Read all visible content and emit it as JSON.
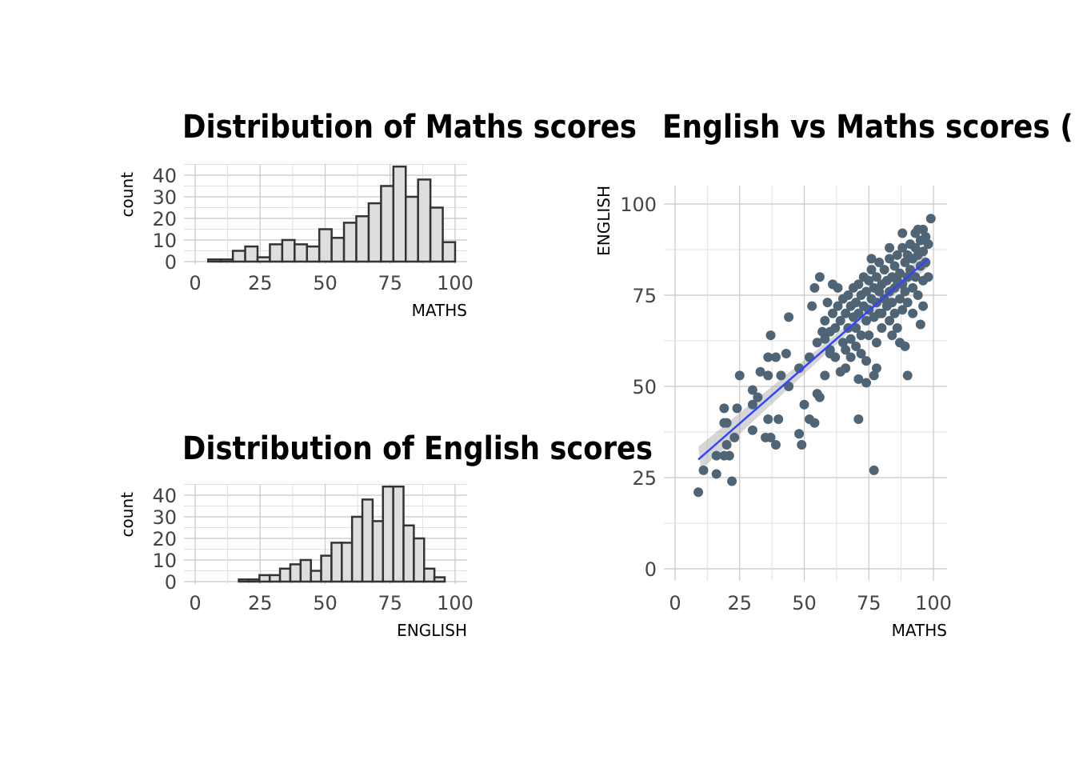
{
  "chart_data": [
    {
      "type": "bar",
      "title": "Distribution of Maths scores",
      "xlabel": "MATHS",
      "ylabel": "count",
      "xlim": [
        0,
        100
      ],
      "ylim": [
        0,
        45
      ],
      "xticks": [
        "0",
        "25",
        "50",
        "75",
        "100"
      ],
      "yticks": [
        "0",
        "10",
        "20",
        "30",
        "40"
      ],
      "bin_start": 5.0,
      "bin_width": 4.75,
      "counts": [
        1,
        1,
        5,
        7,
        2,
        8,
        10,
        8,
        7,
        15,
        11,
        18,
        21,
        27,
        35,
        44,
        30,
        38,
        25,
        9
      ],
      "fill": "#dedede",
      "stroke": "#333333"
    },
    {
      "type": "bar",
      "title": "Distribution of English scores",
      "xlabel": "ENGLISH",
      "ylabel": "count",
      "xlim": [
        0,
        100
      ],
      "ylim": [
        0,
        45
      ],
      "xticks": [
        "0",
        "25",
        "50",
        "75",
        "100"
      ],
      "yticks": [
        "0",
        "10",
        "20",
        "30",
        "40"
      ],
      "bin_start": 16.8,
      "bin_width": 3.96,
      "counts": [
        1,
        1,
        3,
        3,
        6,
        8,
        10,
        5,
        12,
        18,
        18,
        30,
        38,
        28,
        44,
        44,
        26,
        20,
        6,
        2
      ],
      "fill": "#dedede",
      "stroke": "#333333"
    },
    {
      "type": "scatter",
      "title": "English vs Maths scores (P",
      "xlabel": "MATHS",
      "ylabel": "ENGLISH",
      "xlim": [
        0,
        100
      ],
      "ylim": [
        0,
        100
      ],
      "xticks": [
        "0",
        "25",
        "50",
        "75",
        "100"
      ],
      "yticks": [
        "0",
        "25",
        "50",
        "75",
        "100"
      ],
      "point_color": "#4f6575",
      "line_color": "#3344ff",
      "fit": {
        "intercept": 24.4,
        "slope": 0.618,
        "x_range": [
          9,
          98
        ]
      },
      "points": [
        [
          9,
          21
        ],
        [
          11,
          27
        ],
        [
          16,
          26
        ],
        [
          22,
          24
        ],
        [
          16,
          31
        ],
        [
          19,
          31
        ],
        [
          21,
          31
        ],
        [
          20,
          34
        ],
        [
          23,
          36
        ],
        [
          19,
          40
        ],
        [
          20,
          40
        ],
        [
          19,
          44
        ],
        [
          24,
          44
        ],
        [
          25,
          53
        ],
        [
          30,
          38
        ],
        [
          30,
          45
        ],
        [
          30,
          49
        ],
        [
          32,
          47
        ],
        [
          33,
          54
        ],
        [
          36,
          53
        ],
        [
          36,
          41
        ],
        [
          37,
          36
        ],
        [
          35,
          36
        ],
        [
          40,
          41
        ],
        [
          39,
          34
        ],
        [
          36,
          58
        ],
        [
          37,
          64
        ],
        [
          39,
          58
        ],
        [
          43,
          59
        ],
        [
          44,
          69
        ],
        [
          41,
          53
        ],
        [
          44,
          50
        ],
        [
          48,
          37
        ],
        [
          49,
          34
        ],
        [
          50,
          45
        ],
        [
          52,
          41
        ],
        [
          54,
          40
        ],
        [
          54,
          77
        ],
        [
          56,
          80
        ],
        [
          53,
          72
        ],
        [
          61,
          78
        ],
        [
          71,
          41
        ],
        [
          77,
          27
        ],
        [
          90,
          53
        ],
        [
          99,
          96
        ],
        [
          56,
          47
        ],
        [
          55,
          48
        ],
        [
          58,
          53
        ],
        [
          64,
          54
        ],
        [
          66,
          55
        ],
        [
          74,
          51
        ],
        [
          77,
          53
        ],
        [
          78,
          55
        ],
        [
          71,
          52
        ],
        [
          87,
          62
        ],
        [
          89,
          61
        ],
        [
          95,
          67
        ],
        [
          96,
          72
        ],
        [
          48,
          55
        ],
        [
          52,
          58
        ],
        [
          55,
          62
        ],
        [
          58,
          63
        ],
        [
          60,
          59
        ],
        [
          60,
          65
        ],
        [
          61,
          70
        ],
        [
          62,
          66
        ],
        [
          63,
          72
        ],
        [
          64,
          68
        ],
        [
          65,
          74
        ],
        [
          65,
          62
        ],
        [
          66,
          70
        ],
        [
          67,
          75
        ],
        [
          67,
          66
        ],
        [
          68,
          72
        ],
        [
          68,
          63
        ],
        [
          69,
          77
        ],
        [
          69,
          69
        ],
        [
          70,
          73
        ],
        [
          70,
          66
        ],
        [
          71,
          78
        ],
        [
          71,
          70
        ],
        [
          72,
          75
        ],
        [
          72,
          64
        ],
        [
          73,
          80
        ],
        [
          73,
          72
        ],
        [
          74,
          68
        ],
        [
          74,
          76
        ],
        [
          75,
          79
        ],
        [
          75,
          71
        ],
        [
          75,
          64
        ],
        [
          76,
          82
        ],
        [
          76,
          74
        ],
        [
          77,
          77
        ],
        [
          77,
          69
        ],
        [
          78,
          80
        ],
        [
          78,
          73
        ],
        [
          78,
          62
        ],
        [
          79,
          84
        ],
        [
          79,
          76
        ],
        [
          80,
          78
        ],
        [
          80,
          70
        ],
        [
          80,
          66
        ],
        [
          81,
          82
        ],
        [
          81,
          74
        ],
        [
          82,
          79
        ],
        [
          82,
          72
        ],
        [
          83,
          85
        ],
        [
          83,
          76
        ],
        [
          83,
          68
        ],
        [
          84,
          80
        ],
        [
          84,
          73
        ],
        [
          85,
          83
        ],
        [
          85,
          77
        ],
        [
          85,
          70
        ],
        [
          86,
          86
        ],
        [
          86,
          79
        ],
        [
          87,
          81
        ],
        [
          87,
          74
        ],
        [
          88,
          88
        ],
        [
          88,
          78
        ],
        [
          88,
          71
        ],
        [
          89,
          84
        ],
        [
          89,
          76
        ],
        [
          90,
          86
        ],
        [
          90,
          80
        ],
        [
          90,
          73
        ],
        [
          91,
          89
        ],
        [
          91,
          82
        ],
        [
          92,
          85
        ],
        [
          92,
          77
        ],
        [
          93,
          92
        ],
        [
          93,
          88
        ],
        [
          93,
          80
        ],
        [
          94,
          86
        ],
        [
          94,
          75
        ],
        [
          95,
          90
        ],
        [
          95,
          83
        ],
        [
          96,
          93
        ],
        [
          96,
          87
        ],
        [
          96,
          79
        ],
        [
          97,
          91
        ],
        [
          97,
          84
        ],
        [
          98,
          89
        ],
        [
          98,
          80
        ],
        [
          66,
          60
        ],
        [
          68,
          58
        ],
        [
          70,
          61
        ],
        [
          72,
          59
        ],
        [
          74,
          57
        ],
        [
          60,
          60
        ],
        [
          62,
          58
        ],
        [
          58,
          68
        ],
        [
          57,
          65
        ],
        [
          59,
          73
        ],
        [
          63,
          77
        ],
        [
          79,
          70
        ],
        [
          84,
          64
        ],
        [
          86,
          66
        ],
        [
          92,
          70
        ],
        [
          76,
          85
        ],
        [
          83,
          88
        ],
        [
          88,
          92
        ],
        [
          94,
          93
        ]
      ]
    }
  ]
}
